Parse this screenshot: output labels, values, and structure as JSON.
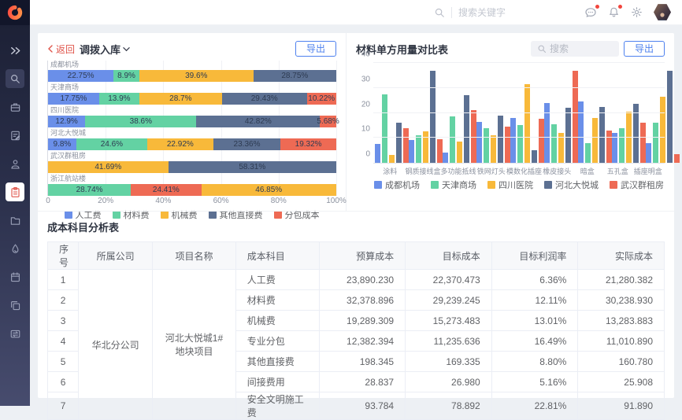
{
  "colors": {
    "blue": "#6a8fe9",
    "green": "#63d2a3",
    "yellow": "#f8b93a",
    "dark": "#5c7092",
    "red": "#ee6a54",
    "accent": "#4e81ee",
    "link": "#e0564c"
  },
  "topbar": {
    "search_placeholder": "搜索关键字",
    "icons": [
      "message-icon",
      "bell-icon",
      "gear-icon"
    ],
    "message_has_badge": true,
    "bell_has_badge": true
  },
  "sidebar": {
    "items": [
      {
        "name": "expand-icon"
      },
      {
        "name": "search-icon"
      },
      {
        "name": "briefcase-icon"
      },
      {
        "name": "document-edit-icon"
      },
      {
        "name": "user-badge-icon"
      },
      {
        "name": "clipboard-icon",
        "active": true
      },
      {
        "name": "folder-icon"
      },
      {
        "name": "droplet-icon"
      },
      {
        "name": "calendar-icon"
      },
      {
        "name": "copy-icon"
      },
      {
        "name": "transfer-icon"
      }
    ]
  },
  "left_panel": {
    "back_label": "返回",
    "title": "调拨入库",
    "export_label": "导出"
  },
  "right_panel": {
    "title": "材料单方用量对比表",
    "search_placeholder": "搜索",
    "export_label": "导出"
  },
  "chart_data": [
    {
      "type": "bar",
      "orientation": "horizontal-stacked",
      "title": "调拨入库",
      "unit": "%",
      "xticks": [
        "0",
        "20%",
        "40%",
        "60%",
        "80%",
        "100%"
      ],
      "xlim": [
        0,
        100
      ],
      "grid": true,
      "legend_position": "bottom",
      "series_colors": {
        "人工费": "blue",
        "材料费": "green",
        "机械费": "yellow",
        "其他直接费": "dark",
        "分包成本": "red"
      },
      "legend": [
        "人工费",
        "材料费",
        "机械费",
        "其他直接费",
        "分包成本"
      ],
      "categories": [
        "成都机场",
        "天津商场",
        "四川医院",
        "河北大悦城",
        "武汉群租房",
        "浙江航站楼"
      ],
      "segments": [
        [
          {
            "name": "人工费",
            "value": 22.75
          },
          {
            "name": "材料费",
            "value": 8.9
          },
          {
            "name": "机械费",
            "value": 39.6
          },
          {
            "name": "其他直接费",
            "value": 28.75
          }
        ],
        [
          {
            "name": "人工费",
            "value": 17.75
          },
          {
            "name": "材料费",
            "value": 13.9
          },
          {
            "name": "机械费",
            "value": 28.7
          },
          {
            "name": "其他直接费",
            "value": 29.43
          },
          {
            "name": "分包成本",
            "value": 10.22
          }
        ],
        [
          {
            "name": "人工费",
            "value": 12.9
          },
          {
            "name": "材料费",
            "value": 38.6
          },
          {
            "name": "其他直接费",
            "value": 42.82
          },
          {
            "name": "分包成本",
            "value": 5.68
          }
        ],
        [
          {
            "name": "人工费",
            "value": 9.8
          },
          {
            "name": "材料费",
            "value": 24.6
          },
          {
            "name": "机械费",
            "value": 22.92
          },
          {
            "name": "其他直接费",
            "value": 23.36
          },
          {
            "name": "分包成本",
            "value": 19.32
          }
        ],
        [
          {
            "name": "机械费",
            "value": 41.69
          },
          {
            "name": "其他直接费",
            "value": 58.31
          }
        ],
        [
          {
            "name": "材料费",
            "value": 28.74
          },
          {
            "name": "分包成本",
            "value": 24.41
          },
          {
            "name": "机械费",
            "value": 46.85
          }
        ]
      ]
    },
    {
      "type": "bar",
      "orientation": "vertical-grouped",
      "title": "材料单方用量对比表",
      "ylim": [
        0,
        40
      ],
      "yticks": [
        0,
        10,
        20,
        30,
        40
      ],
      "grid": true,
      "legend_position": "bottom",
      "categories": [
        "涂料",
        "钢质接线盒",
        "多功能抵线",
        "铁网灯头",
        "模数化插座",
        "橡皮接头",
        "暗盒",
        "五孔盒",
        "插座明盒"
      ],
      "series": [
        {
          "name": "成都机场",
          "color": "blue",
          "values": [
            7.5,
            9,
            4,
            16.5,
            18,
            24,
            24.5,
            12,
            8
          ]
        },
        {
          "name": "天津商场",
          "color": "green",
          "values": [
            27.5,
            11,
            18.5,
            14,
            15,
            15.5,
            8,
            14,
            16
          ]
        },
        {
          "name": "四川医院",
          "color": "yellow",
          "values": [
            3,
            12.5,
            8.5,
            11,
            31.5,
            12,
            18,
            20.5,
            26.5
          ]
        },
        {
          "name": "河北大悦城",
          "color": "dark",
          "values": [
            16,
            37,
            27,
            19,
            5,
            22,
            22.5,
            23.5,
            37
          ]
        },
        {
          "name": "武汉群租房",
          "color": "red",
          "values": [
            14,
            9.5,
            21,
            14.5,
            17.5,
            37,
            13,
            16,
            3.5
          ]
        }
      ]
    }
  ],
  "table": {
    "title": "成本科目分析表",
    "headers": [
      "序号",
      "所属公司",
      "项目名称",
      "成本科目",
      "预算成本",
      "目标成本",
      "目标利润率",
      "实际成本"
    ],
    "company": "华北分公司",
    "project": "河北大悦城1#地块项目",
    "rows": [
      {
        "no": "1",
        "subject": "人工费",
        "budget": "23,890.230",
        "target": "22,370.473",
        "profit": "6.36%",
        "actual": "21,280.382"
      },
      {
        "no": "2",
        "subject": "材料费",
        "budget": "32,378.896",
        "target": "29,239.245",
        "profit": "12.11%",
        "actual": "30,238.930"
      },
      {
        "no": "3",
        "subject": "机械费",
        "budget": "19,289.309",
        "target": "15,273.483",
        "profit": "13.01%",
        "actual": "13,283.883"
      },
      {
        "no": "4",
        "subject": "专业分包",
        "budget": "12,382.394",
        "target": "11,235.636",
        "profit": "16.49%",
        "actual": "11,010.890"
      },
      {
        "no": "5",
        "subject": "其他直接费",
        "budget": "198.345",
        "target": "169.335",
        "profit": "8.80%",
        "actual": "160.780"
      },
      {
        "no": "6",
        "subject": "间接费用",
        "budget": "28.837",
        "target": "26.980",
        "profit": "5.16%",
        "actual": "25.908"
      },
      {
        "no": "7",
        "subject": "安全文明施工费",
        "budget": "93.784",
        "target": "78.892",
        "profit": "22.81%",
        "actual": "91.890"
      }
    ]
  }
}
